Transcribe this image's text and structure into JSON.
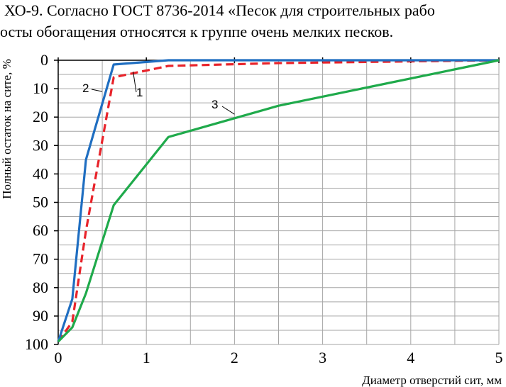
{
  "text": {
    "line1": "ХО-9. Согласно ГОСТ 8736-2014 «Песок для строительных рабо",
    "line2": "осты обогащения относятся к группе очень мелких песков."
  },
  "chart_data": {
    "type": "line",
    "title": "",
    "xlabel": "Диаметр отверстий сит, мм",
    "ylabel": "Полный остаток на сите, %",
    "xlim": [
      0,
      5
    ],
    "ylim": [
      0,
      100
    ],
    "y_inverted": true,
    "grid": true,
    "x_ticks": [
      "0",
      "1",
      "2",
      "3",
      "4",
      "5"
    ],
    "y_ticks": [
      "0",
      "10",
      "20",
      "30",
      "40",
      "50",
      "60",
      "70",
      "80",
      "90",
      "100"
    ],
    "series": [
      {
        "name": "1",
        "color": "#e8232a",
        "dashed": true,
        "x": [
          0,
          0.16,
          0.315,
          0.63,
          1.25,
          2.5,
          5
        ],
        "y": [
          99,
          92,
          60,
          6,
          2,
          1,
          0
        ]
      },
      {
        "name": "2",
        "color": "#1f6ec1",
        "dashed": false,
        "x": [
          0,
          0.16,
          0.315,
          0.63,
          1.25,
          2.5,
          5
        ],
        "y": [
          99,
          84,
          35,
          1.5,
          0,
          0,
          0
        ]
      },
      {
        "name": "3",
        "color": "#1faa4b",
        "dashed": false,
        "x": [
          0,
          0.16,
          0.315,
          0.63,
          1.25,
          2.5,
          5
        ],
        "y": [
          99,
          94,
          82,
          51,
          27,
          16,
          0
        ]
      }
    ]
  }
}
